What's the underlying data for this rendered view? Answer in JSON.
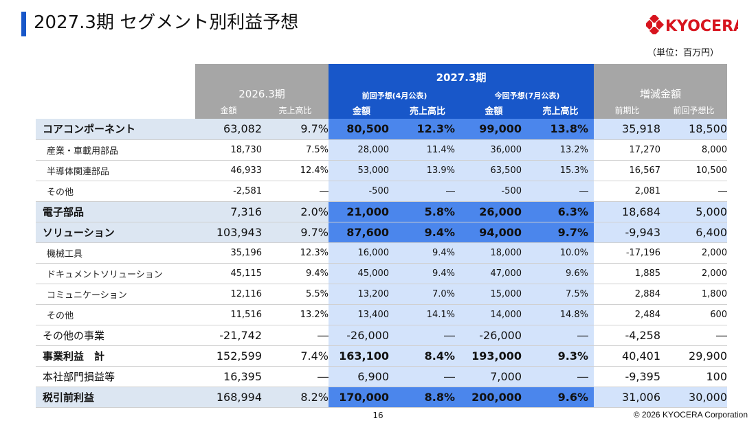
{
  "header": {
    "title": "2027.3期 セグメント別利益予想",
    "unit": "（単位：百万円）",
    "logo_text": "KYOCERA"
  },
  "table": {
    "group_fy2026": "2026.3期",
    "group_fy2027": "2027.3期",
    "sub_prev": "前回予想(4月公表)",
    "sub_curr": "今回予想(7月公表)",
    "group_diff": "増減金額",
    "col_amount": "金額",
    "col_ratio": "売上高比",
    "col_yoy": "前期比",
    "col_vs_prev": "前回予想比",
    "rows": [
      {
        "label": "コアコンポーネント",
        "type": "major",
        "v": [
          "63,082",
          "9.7%",
          "80,500",
          "12.3%",
          "99,000",
          "13.8%",
          "35,918",
          "18,500"
        ]
      },
      {
        "label": "産業・車載用部品",
        "type": "sub",
        "v": [
          "18,730",
          "7.5%",
          "28,000",
          "11.4%",
          "36,000",
          "13.2%",
          "17,270",
          "8,000"
        ]
      },
      {
        "label": "半導体関連部品",
        "type": "sub",
        "v": [
          "46,933",
          "12.4%",
          "53,000",
          "13.9%",
          "63,500",
          "15.3%",
          "16,567",
          "10,500"
        ]
      },
      {
        "label": "その他",
        "type": "sub",
        "v": [
          "-2,581",
          "―",
          "-500",
          "―",
          "-500",
          "―",
          "2,081",
          "―"
        ]
      },
      {
        "label": "電子部品",
        "type": "major",
        "v": [
          "7,316",
          "2.0%",
          "21,000",
          "5.8%",
          "26,000",
          "6.3%",
          "18,684",
          "5,000"
        ]
      },
      {
        "label": "ソリューション",
        "type": "major",
        "v": [
          "103,943",
          "9.7%",
          "87,600",
          "9.4%",
          "94,000",
          "9.7%",
          "-9,943",
          "6,400"
        ]
      },
      {
        "label": "機械工具",
        "type": "sub",
        "v": [
          "35,196",
          "12.3%",
          "16,000",
          "9.4%",
          "18,000",
          "10.0%",
          "-17,196",
          "2,000"
        ]
      },
      {
        "label": "ドキュメントソリューション",
        "type": "sub",
        "v": [
          "45,115",
          "9.4%",
          "45,000",
          "9.4%",
          "47,000",
          "9.6%",
          "1,885",
          "2,000"
        ]
      },
      {
        "label": "コミュニケーション",
        "type": "sub",
        "v": [
          "12,116",
          "5.5%",
          "13,200",
          "7.0%",
          "15,000",
          "7.5%",
          "2,884",
          "1,800"
        ]
      },
      {
        "label": "その他",
        "type": "sub",
        "v": [
          "11,516",
          "13.2%",
          "13,400",
          "14.1%",
          "14,000",
          "14.8%",
          "2,484",
          "600"
        ]
      },
      {
        "label": "その他の事業",
        "type": "plain",
        "v": [
          "-21,742",
          "―",
          "-26,000",
          "―",
          "-26,000",
          "―",
          "-4,258",
          "―"
        ]
      },
      {
        "label": "事業利益　計",
        "type": "plain boldlbl",
        "v": [
          "152,599",
          "7.4%",
          "163,100",
          "8.4%",
          "193,000",
          "9.3%",
          "40,401",
          "29,900"
        ]
      },
      {
        "label": "本社部門損益等",
        "type": "plain",
        "v": [
          "16,395",
          "―",
          "6,900",
          "―",
          "7,000",
          "―",
          "-9,395",
          "100"
        ]
      },
      {
        "label": "税引前利益",
        "type": "major",
        "v": [
          "168,994",
          "8.2%",
          "170,000",
          "8.8%",
          "200,000",
          "9.6%",
          "31,006",
          "30,000"
        ]
      }
    ]
  },
  "footer": {
    "page_number": "16",
    "copyright": "© 2026 KYOCERA Corporation"
  },
  "colors": {
    "accent_blue": "#1857c9",
    "header_gray": "#a6a6a6",
    "light_blue": "#d3e3fb",
    "mid_blue": "#4b86ec",
    "logo_red": "#d7141e"
  }
}
